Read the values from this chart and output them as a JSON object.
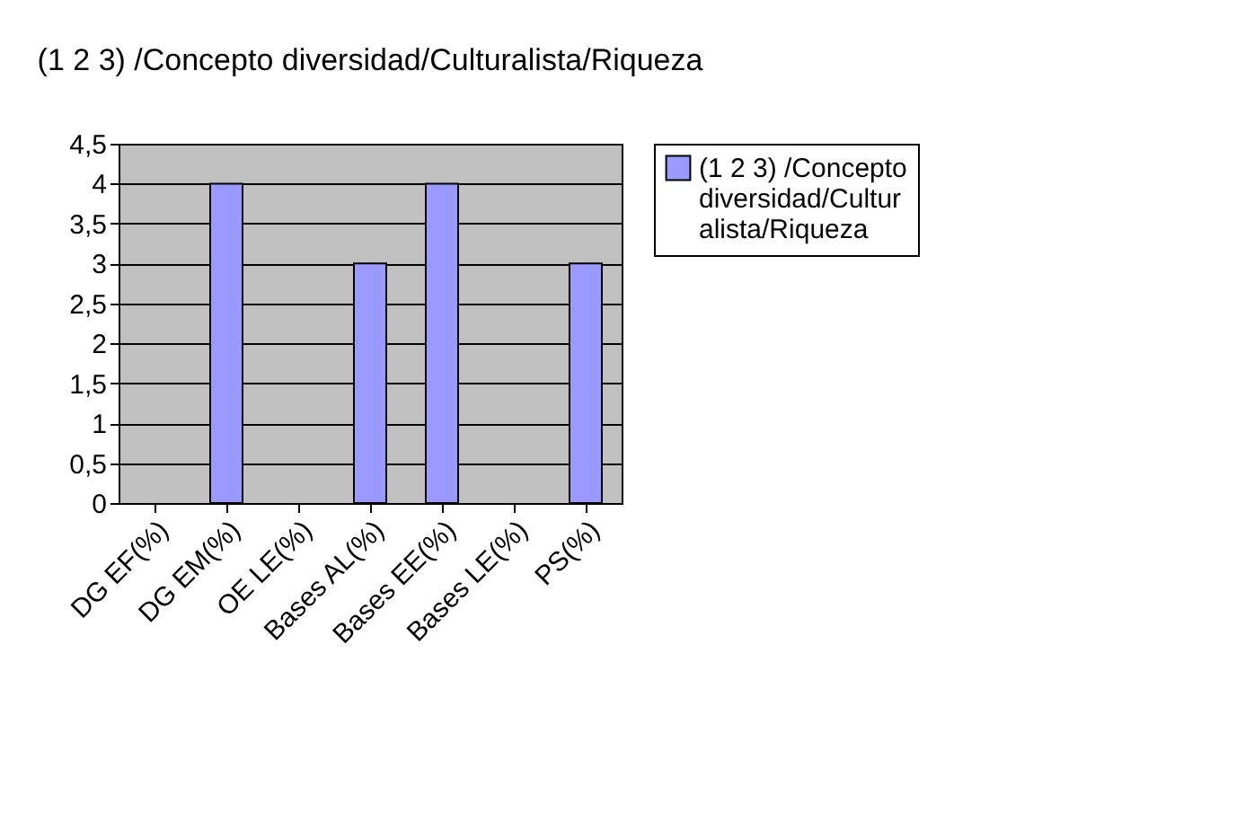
{
  "chart_data": {
    "type": "bar",
    "title": "(1 2 3) /Concepto diversidad/Culturalista/Riqueza",
    "categories": [
      "DG EF(%)",
      "DG EM(%)",
      "OE LE(%)",
      "Bases AL(%)",
      "Bases EE(%)",
      "Bases LE(%)",
      "PS(%)"
    ],
    "series": [
      {
        "name": "(1 2 3) /Concepto diversidad/Culturalista/Riqueza",
        "color": "#9999ff",
        "values": [
          null,
          4,
          null,
          3,
          4,
          null,
          3
        ]
      }
    ],
    "ylim": [
      0,
      4.5
    ],
    "yticks": [
      0,
      {
        "value": 0.5,
        "label": "0,5"
      },
      1,
      {
        "value": 1.5,
        "label": "1,5"
      },
      2,
      {
        "value": 2.5,
        "label": "2,5"
      },
      3,
      {
        "value": 3.5,
        "label": "3,5"
      },
      4,
      {
        "value": 4.5,
        "label": "4,5"
      }
    ],
    "grid": "y",
    "legend": "right"
  }
}
